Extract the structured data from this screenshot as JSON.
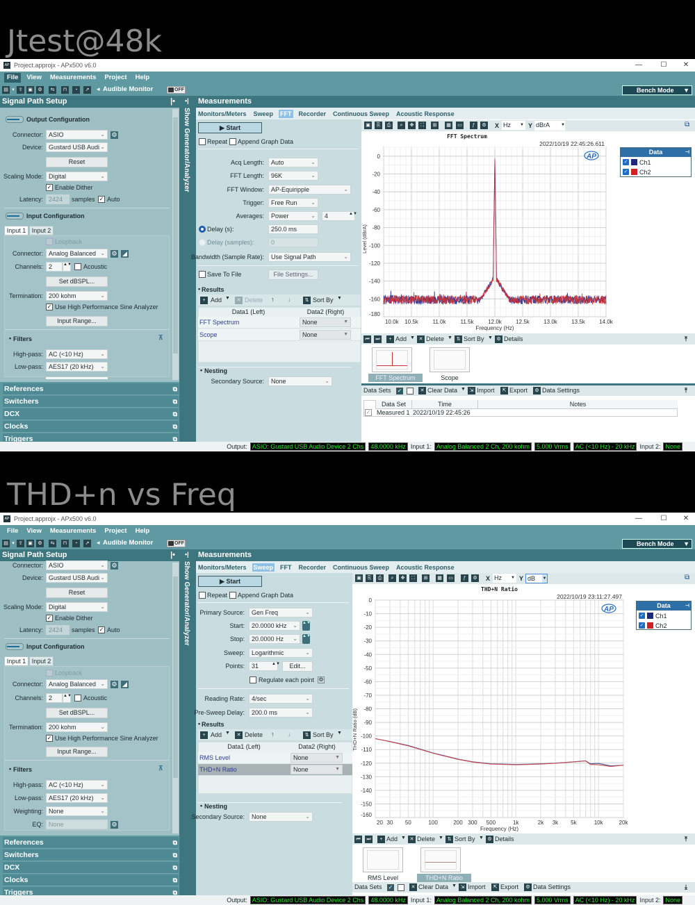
{
  "windows": [
    {
      "heading": "Jtest@48k",
      "title": "Project.approjx - APx500 v6.0",
      "menu": [
        "File",
        "View",
        "Measurements",
        "Project",
        "Help"
      ],
      "active_menu": 0,
      "audible_monitor": "Audible Monitor",
      "monitor_state": "OFF",
      "bench_mode": "Bench Mode",
      "side_tab": "Show Generator/Analyzer",
      "signal_path": {
        "title": "Signal Path Setup",
        "rows": [
          {
            "type": "section",
            "label": "Output Configuration"
          },
          {
            "type": "select",
            "label": "Connector:",
            "value": "ASIO",
            "icons": [
              "gear"
            ]
          },
          {
            "type": "select",
            "label": "Device:",
            "value": "Gustard USB Audi..."
          },
          {
            "type": "button",
            "label": "Reset"
          },
          {
            "type": "select",
            "label": "Scaling Mode:",
            "value": "Digital"
          },
          {
            "type": "check",
            "label": "Enable Dither",
            "checked": true
          },
          {
            "type": "latency",
            "label": "Latency:",
            "value": "2424",
            "unit": "samples",
            "auto": "Auto"
          },
          {
            "type": "section",
            "label": "Input Configuration"
          },
          {
            "type": "tabs",
            "tabs": [
              "Input 1",
              "Input 2"
            ]
          },
          {
            "type": "check",
            "label": "Loopback",
            "checked": false,
            "disabled": true
          },
          {
            "type": "select",
            "label": "Connector:",
            "value": "Analog Balanced",
            "icons": [
              "gear",
              "input-meter"
            ]
          },
          {
            "type": "channels",
            "label": "Channels:",
            "value": "2",
            "acoustic": "Acoustic"
          },
          {
            "type": "button",
            "label": "Set dBSPL..."
          },
          {
            "type": "select",
            "label": "Termination:",
            "value": "200 kohm"
          },
          {
            "type": "check",
            "label": "Use High Performance Sine Analyzer",
            "checked": true
          },
          {
            "type": "button",
            "label": "Input Range..."
          },
          {
            "type": "group",
            "label": "Filters"
          },
          {
            "type": "select",
            "label": "High-pass:",
            "value": "AC (<10 Hz)"
          },
          {
            "type": "select",
            "label": "Low-pass:",
            "value": "AES17 (20 kHz)"
          }
        ]
      },
      "sections": [
        "References",
        "Switchers",
        "DCX",
        "Clocks",
        "Triggers"
      ],
      "measurements": {
        "title": "Measurements",
        "tabs": [
          "Monitors/Meters",
          "Sweep",
          "FFT",
          "Recorder",
          "Continuous Sweep",
          "Acoustic Response"
        ],
        "active_tab": 2,
        "start": "Start",
        "repeat": "Repeat",
        "append": "Append Graph Data",
        "rows": [
          {
            "type": "select",
            "label": "Acq Length:",
            "value": "Auto"
          },
          {
            "type": "select",
            "label": "FFT Length:",
            "value": "96K"
          },
          {
            "type": "select",
            "label": "FFT Window:",
            "value": "AP-Equiripple"
          },
          {
            "type": "select",
            "label": "Trigger:",
            "value": "Free Run"
          },
          {
            "type": "select_spin",
            "label": "Averages:",
            "value": "Power",
            "spin": "4"
          },
          {
            "type": "radio",
            "label": "Delay (s):",
            "value": "250.0 ms",
            "checked": true
          },
          {
            "type": "radio",
            "label": "Delay (samples):",
            "value": "0",
            "disabled": true
          },
          {
            "type": "select",
            "label": "Bandwidth (Sample Rate):",
            "value": "Use Signal Path"
          },
          {
            "type": "check_button",
            "label": "Save To File",
            "button": "File Settings..."
          }
        ],
        "results": {
          "title": "Results",
          "add": "Add",
          "delete": "Delete",
          "delete_disabled": true,
          "sort_by": "Sort By",
          "columns": [
            "Data1 (Left)",
            "Data2 (Right)"
          ],
          "rows": [
            {
              "name": "FFT Spectrum",
              "data2": "None"
            },
            {
              "name": "Scope",
              "data2": "None"
            }
          ],
          "selected": -1
        },
        "nesting": {
          "title": "Nesting",
          "label": "Secondary Source:",
          "value": "None"
        }
      },
      "graph": {
        "x_unit": "Hz",
        "y_unit": "dBrA",
        "y_unit_focused": false,
        "timestamp": "2022/10/19 22:45:26.611",
        "legend": {
          "title": "Data",
          "items": [
            {
              "name": "Ch1",
              "color": "#1b2a7a"
            },
            {
              "name": "Ch2",
              "color": "#d02222"
            }
          ]
        },
        "toolbar": {
          "add": "Add",
          "delete": "Delete",
          "sort_by": "Sort By",
          "details": "Details"
        },
        "thumbnails": [
          {
            "label": "FFT Spectrum",
            "selected": true
          },
          {
            "label": "Scope",
            "selected": false
          }
        ],
        "data_sets": {
          "label": "Data Sets",
          "clear": "Clear Data",
          "import": "Import",
          "export": "Export",
          "settings": "Data Settings",
          "columns": [
            "Data Set",
            "Time",
            "Notes"
          ],
          "rows": [
            [
              "Measured 1",
              "2022/10/19 22:45:26",
              ""
            ]
          ]
        }
      },
      "status": {
        "output_label": "Output:",
        "output": [
          "ASIO: Gustard USB Audio Device 2 Chs",
          "48.0000 kHz"
        ],
        "input1_label": "Input 1:",
        "input1": [
          "Analog Balanced 2 Ch, 200 kohm",
          "5.000 Vrms",
          "AC (<10 Hz) - 20 kHz"
        ],
        "input2_label": "Input 2:",
        "input2": [
          "None"
        ]
      }
    },
    {
      "heading": "THD+n vs Freq",
      "title": "Project.approjx - APx500 v6.0",
      "menu": [
        "File",
        "View",
        "Measurements",
        "Project",
        "Help"
      ],
      "active_menu": -1,
      "audible_monitor": "Audible Monitor",
      "monitor_state": "OFF",
      "bench_mode": "Bench Mode",
      "side_tab": "Show Generator/Analyzer",
      "signal_path": {
        "title": "Signal Path Setup",
        "rows": [
          {
            "type": "select",
            "label": "Connector:",
            "value": "ASIO",
            "icons": [
              "gear"
            ]
          },
          {
            "type": "select",
            "label": "Device:",
            "value": "Gustard USB Audi..."
          },
          {
            "type": "button",
            "label": "Reset"
          },
          {
            "type": "select",
            "label": "Scaling Mode:",
            "value": "Digital"
          },
          {
            "type": "check",
            "label": "Enable Dither",
            "checked": true
          },
          {
            "type": "latency",
            "label": "Latency:",
            "value": "2424",
            "unit": "samples",
            "auto": "Auto"
          },
          {
            "type": "section",
            "label": "Input Configuration"
          },
          {
            "type": "tabs",
            "tabs": [
              "Input 1",
              "Input 2"
            ]
          },
          {
            "type": "check",
            "label": "Loopback",
            "checked": false,
            "disabled": true
          },
          {
            "type": "select",
            "label": "Connector:",
            "value": "Analog Balanced",
            "icons": [
              "gear",
              "input-meter"
            ]
          },
          {
            "type": "channels",
            "label": "Channels:",
            "value": "2",
            "acoustic": "Acoustic"
          },
          {
            "type": "button",
            "label": "Set dBSPL..."
          },
          {
            "type": "select",
            "label": "Termination:",
            "value": "200 kohm"
          },
          {
            "type": "check",
            "label": "Use High Performance Sine Analyzer",
            "checked": true
          },
          {
            "type": "button",
            "label": "Input Range..."
          },
          {
            "type": "group",
            "label": "Filters"
          },
          {
            "type": "select",
            "label": "High-pass:",
            "value": "AC (<10 Hz)"
          },
          {
            "type": "select",
            "label": "Low-pass:",
            "value": "AES17 (20 kHz)"
          },
          {
            "type": "select",
            "label": "Weighting:",
            "value": "None"
          },
          {
            "type": "disabled_field",
            "label": "EQ:",
            "value": "None",
            "icons": [
              "gear"
            ]
          }
        ]
      },
      "sections": [
        "References",
        "Switchers",
        "DCX",
        "Clocks",
        "Triggers"
      ],
      "measurements": {
        "title": "Measurements",
        "tabs": [
          "Monitors/Meters",
          "Sweep",
          "FFT",
          "Recorder",
          "Continuous Sweep",
          "Acoustic Response"
        ],
        "active_tab": 1,
        "start": "Start",
        "repeat": "Repeat",
        "append": "Append Graph Data",
        "rows": [
          {
            "type": "select",
            "label": "Primary Source:",
            "value": "Gen Freq"
          },
          {
            "type": "select_stepper",
            "label": "Start:",
            "value": "20.0000 kHz"
          },
          {
            "type": "select_stepper",
            "label": "Stop:",
            "value": "20.0000 Hz"
          },
          {
            "type": "select",
            "label": "Sweep:",
            "value": "Logarithmic"
          },
          {
            "type": "points",
            "label": "Points:",
            "value": "31",
            "button": "Edit..."
          },
          {
            "type": "check",
            "label": "Regulate each point",
            "checked": false
          },
          {
            "type": "select",
            "label": "Reading Rate:",
            "value": "4/sec"
          },
          {
            "type": "select",
            "label": "Pre-Sweep Delay:",
            "value": "200.0 ms"
          }
        ],
        "results": {
          "title": "Results",
          "add": "Add",
          "delete": "Delete",
          "delete_disabled": false,
          "sort_by": "Sort By",
          "columns": [
            "Data1 (Left)",
            "Data2 (Right)"
          ],
          "rows": [
            {
              "name": "RMS Level",
              "data2": "None"
            },
            {
              "name": "THD+N Ratio",
              "data2": "None"
            }
          ],
          "selected": 1
        },
        "nesting": {
          "title": "Nesting",
          "label": "Secondary Source:",
          "value": "None"
        }
      },
      "graph": {
        "x_unit": "Hz",
        "y_unit": "dB",
        "y_unit_focused": true,
        "timestamp": "2022/10/19 23:11:27.497",
        "legend": {
          "title": "Data",
          "items": [
            {
              "name": "Ch1",
              "color": "#1b2a7a"
            },
            {
              "name": "Ch2",
              "color": "#d02222"
            }
          ]
        },
        "toolbar": {
          "add": "Add",
          "delete": "Delete",
          "sort_by": "Sort By",
          "details": "Details"
        },
        "thumbnails": [
          {
            "label": "RMS Level",
            "selected": false
          },
          {
            "label": "THD+N Ratio",
            "selected": true
          }
        ],
        "data_sets": {
          "label": "Data Sets",
          "clear": "Clear Data",
          "import": "Import",
          "export": "Export",
          "settings": "Data Settings"
        }
      },
      "status": {
        "output_label": "Output:",
        "output": [
          "ASIO: Gustard USB Audio Device 2 Chs",
          "48.0000 kHz"
        ],
        "input1_label": "Input 1:",
        "input1": [
          "Analog Balanced 2 Ch, 200 kohm",
          "5.000 Vrms",
          "AC (<10 Hz) - 20 kHz"
        ],
        "input2_label": "Input 2:",
        "input2": [
          "None"
        ]
      }
    }
  ],
  "chart_data": [
    {
      "type": "line",
      "title": "FFT Spectrum",
      "xlabel": "Frequency (Hz)",
      "ylabel": "Level (dBrA)",
      "xlim": [
        10000,
        14000
      ],
      "ylim": [
        -180,
        10
      ],
      "x_scale": "linear",
      "grid": true,
      "x_ticks": {
        "values": [
          10000,
          10500,
          11000,
          11500,
          12000,
          12500,
          13000,
          13500,
          14000
        ],
        "labels": [
          "10.0k",
          "10.5k",
          "11.0k",
          "11.5k",
          "12.0k",
          "12.5k",
          "13.0k",
          "13.5k",
          "14.0k"
        ]
      },
      "y_ticks": {
        "values": [
          0,
          -20,
          -40,
          -60,
          -80,
          -100,
          -120,
          -140,
          -160,
          -180
        ],
        "labels": [
          "0",
          "-20",
          "-40",
          "-60",
          "-80",
          "-100",
          "-120",
          "-140",
          "-160",
          "-180"
        ]
      },
      "legend": "right",
      "series": [
        {
          "name": "Ch1",
          "color": "#2a3f9a"
        },
        {
          "name": "Ch2",
          "color": "#c8323a"
        }
      ],
      "peak": {
        "x": 12000,
        "y": -3
      },
      "skirt_level": -135,
      "noise_floor": -161
    },
    {
      "type": "line",
      "title": "THD+N Ratio",
      "xlabel": "Frequency (Hz)",
      "ylabel": "THD+N Ratio (dB)",
      "xlim": [
        20,
        20000
      ],
      "ylim": [
        -160,
        0
      ],
      "x_scale": "log",
      "grid": true,
      "x_ticks": {
        "values": [
          20,
          30,
          50,
          100,
          200,
          300,
          500,
          1000,
          2000,
          3000,
          5000,
          10000,
          20000
        ],
        "labels": [
          "20",
          "30",
          "50",
          "100",
          "200",
          "300",
          "500",
          "1k",
          "2k",
          "3k",
          "5k",
          "10k",
          "20k"
        ]
      },
      "y_ticks": {
        "values": [
          0,
          -10,
          -20,
          -30,
          -40,
          -50,
          -60,
          -70,
          -80,
          -90,
          -100,
          -110,
          -120,
          -130,
          -140,
          -150,
          -160
        ],
        "labels": [
          "0",
          "-10",
          "-20",
          "-30",
          "-40",
          "-50",
          "-60",
          "-70",
          "-80",
          "-90",
          "-100",
          "-110",
          "-120",
          "-130",
          "-140",
          "-150",
          "-160"
        ]
      },
      "legend": "right",
      "x": [
        20,
        30,
        50,
        100,
        200,
        300,
        500,
        1000,
        2000,
        3000,
        5000,
        7000,
        8000,
        10000,
        14000,
        20000
      ],
      "series": [
        {
          "name": "Ch1",
          "color": "#4a5a9a",
          "values": [
            -102,
            -104,
            -107,
            -112.5,
            -117,
            -119,
            -120.5,
            -121,
            -120.5,
            -120,
            -119,
            -118.3,
            -120.5,
            -120.2,
            -122,
            -121.5
          ]
        },
        {
          "name": "Ch2",
          "color": "#c84a52",
          "values": [
            -102,
            -104.2,
            -107.3,
            -112.7,
            -117.2,
            -119.2,
            -120.7,
            -121.2,
            -120.7,
            -120.1,
            -119.1,
            -118.4,
            -121,
            -121.2,
            -122.5,
            -121.5
          ]
        }
      ]
    }
  ]
}
